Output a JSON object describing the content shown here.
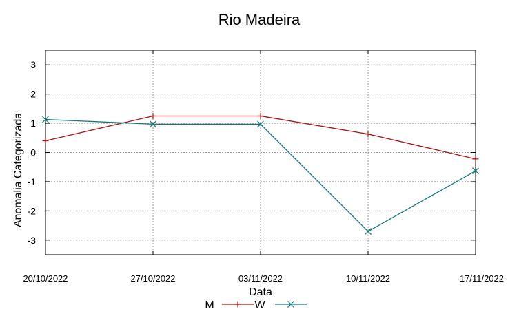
{
  "chart_data": {
    "type": "line",
    "title": "Rio Madeira",
    "xlabel": "Data",
    "ylabel": "Anomalia Categorizada",
    "x": [
      "20/10/2022",
      "27/10/2022",
      "03/11/2022",
      "10/11/2022",
      "17/11/2022"
    ],
    "ylim": [
      -3.5,
      3.5
    ],
    "yticks": [
      -3,
      -2,
      -1,
      0,
      1,
      2,
      3
    ],
    "grid": true,
    "legend": "bottom",
    "series": [
      {
        "name": "M",
        "values": [
          0.4,
          1.25,
          1.25,
          0.63,
          -0.22
        ],
        "color": "#aa1111",
        "marker": "plus"
      },
      {
        "name": "W",
        "values": [
          1.13,
          0.97,
          0.97,
          -2.7,
          -0.63
        ],
        "color": "#117a7a",
        "marker": "cross"
      }
    ]
  }
}
